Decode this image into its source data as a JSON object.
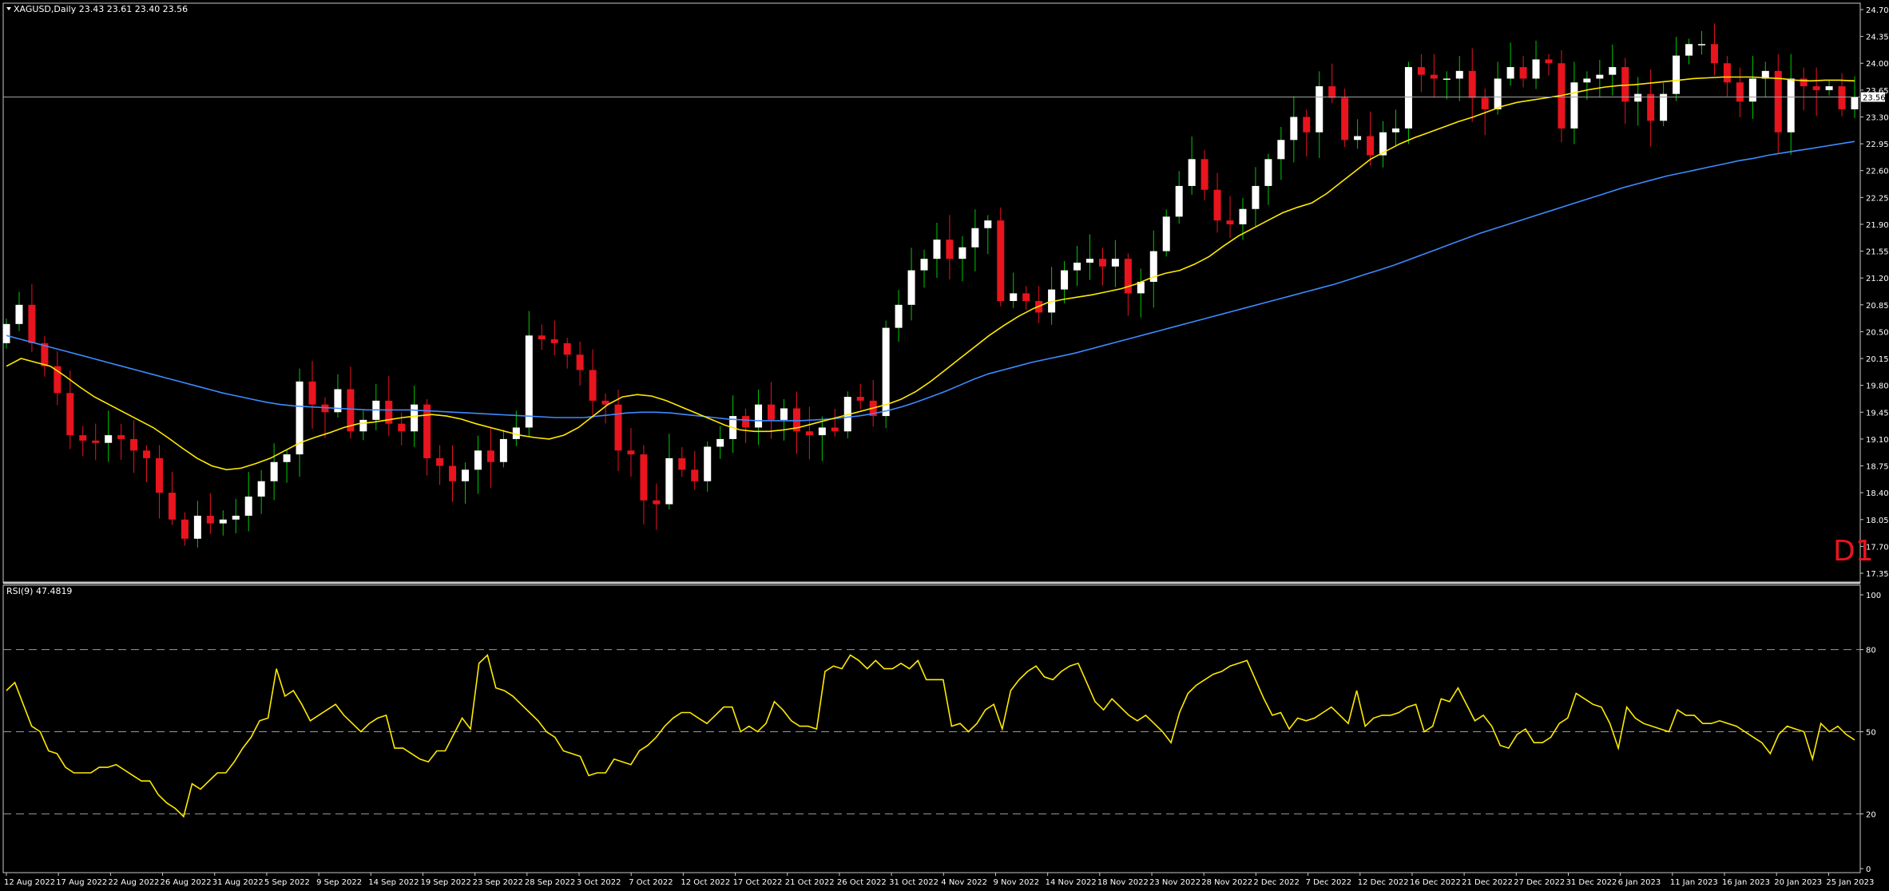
{
  "header": {
    "symbol_line": "XAGUSD,Daily  23.43 23.61 23.40 23.56",
    "rsi_label": "RSI(9) 47.4819",
    "timeframe": "D1",
    "current_price": "23.56"
  },
  "colors": {
    "background": "#000000",
    "bull_candle": "#ffffff",
    "bear_candle": "#e8141e",
    "bull_wick": "#00c800",
    "bear_wick": "#e8141e",
    "ma_fast": "#ffea00",
    "ma_slow": "#3d8bff",
    "rsi_line": "#ffea00"
  },
  "chart_data": [
    {
      "type": "candlestick",
      "price_ylim": [
        17.35,
        24.7
      ],
      "price_ticks": [
        "24.70",
        "24.35",
        "24.00",
        "23.65",
        "23.30",
        "22.95",
        "22.60",
        "22.25",
        "21.90",
        "21.55",
        "21.20",
        "20.85",
        "20.50",
        "20.15",
        "19.80",
        "19.45",
        "19.10",
        "18.75",
        "18.40",
        "18.05",
        "17.70",
        "17.35"
      ],
      "x_labels": [
        "12 Aug 2022",
        "17 Aug 2022",
        "22 Aug 2022",
        "26 Aug 2022",
        "31 Aug 2022",
        "5 Sep 2022",
        "9 Sep 2022",
        "14 Sep 2022",
        "19 Sep 2022",
        "23 Sep 2022",
        "28 Sep 2022",
        "3 Oct 2022",
        "7 Oct 2022",
        "12 Oct 2022",
        "17 Oct 2022",
        "21 Oct 2022",
        "26 Oct 2022",
        "31 Oct 2022",
        "4 Nov 2022",
        "9 Nov 2022",
        "14 Nov 2022",
        "18 Nov 2022",
        "23 Nov 2022",
        "28 Nov 2022",
        "2 Dec 2022",
        "7 Dec 2022",
        "12 Dec 2022",
        "16 Dec 2022",
        "21 Dec 2022",
        "27 Dec 2022",
        "31 Dec 2022",
        "6 Jan 2023",
        "11 Jan 2023",
        "16 Jan 2023",
        "20 Jan 2023",
        "25 Jan 2023"
      ],
      "close": [
        20.6,
        20.85,
        20.35,
        20.05,
        19.7,
        19.15,
        19.08,
        19.05,
        19.15,
        19.1,
        18.95,
        18.85,
        18.4,
        18.05,
        17.8,
        18.1,
        18.0,
        18.05,
        18.1,
        18.35,
        18.55,
        18.8,
        18.9,
        19.85,
        19.55,
        19.45,
        19.75,
        19.2,
        19.35,
        19.6,
        19.3,
        19.2,
        19.55,
        18.85,
        18.75,
        18.55,
        18.7,
        18.95,
        18.8,
        19.1,
        19.25,
        20.45,
        20.4,
        20.35,
        20.2,
        20.0,
        19.6,
        19.55,
        18.95,
        18.9,
        18.3,
        18.25,
        18.85,
        18.7,
        18.55,
        19.0,
        19.1,
        19.4,
        19.25,
        19.55,
        19.35,
        19.5,
        19.2,
        19.15,
        19.25,
        19.2,
        19.65,
        19.6,
        19.4,
        20.55,
        20.85,
        21.3,
        21.45,
        21.7,
        21.45,
        21.6,
        21.85,
        21.95,
        20.9,
        21.0,
        20.9,
        20.75,
        21.05,
        21.3,
        21.4,
        21.45,
        21.35,
        21.45,
        21.0,
        21.15,
        21.55,
        22.0,
        22.4,
        22.75,
        22.35,
        21.95,
        21.9,
        22.1,
        22.4,
        22.75,
        23.0,
        23.3,
        23.1,
        23.7,
        23.55,
        23.0,
        23.05,
        22.8,
        23.1,
        23.15,
        23.95,
        23.85,
        23.8,
        23.8,
        23.9,
        23.55,
        23.4,
        23.8,
        23.95,
        23.8,
        24.05,
        24.0,
        23.15,
        23.75,
        23.8,
        23.85,
        23.95,
        23.5,
        23.6,
        23.25,
        23.6,
        24.1,
        24.25,
        24.25,
        24.0,
        23.75,
        23.5,
        23.8,
        23.9,
        23.1,
        23.8,
        23.7,
        23.65,
        23.7,
        23.4,
        23.56
      ],
      "ma_fast": [
        20.05,
        20.15,
        20.1,
        20.05,
        19.92,
        19.78,
        19.65,
        19.55,
        19.45,
        19.35,
        19.25,
        19.12,
        18.98,
        18.85,
        18.75,
        18.7,
        18.72,
        18.78,
        18.85,
        18.95,
        19.05,
        19.12,
        19.18,
        19.25,
        19.3,
        19.32,
        19.35,
        19.38,
        19.4,
        19.42,
        19.4,
        19.36,
        19.3,
        19.25,
        19.2,
        19.15,
        19.12,
        19.1,
        19.15,
        19.25,
        19.4,
        19.55,
        19.65,
        19.68,
        19.66,
        19.6,
        19.52,
        19.44,
        19.36,
        19.28,
        19.22,
        19.2,
        19.2,
        19.22,
        19.25,
        19.3,
        19.35,
        19.4,
        19.45,
        19.5,
        19.55,
        19.62,
        19.72,
        19.85,
        20.0,
        20.15,
        20.3,
        20.45,
        20.58,
        20.7,
        20.8,
        20.88,
        20.92,
        20.95,
        20.98,
        21.02,
        21.06,
        21.12,
        21.2,
        21.26,
        21.3,
        21.38,
        21.48,
        21.62,
        21.75,
        21.85,
        21.95,
        22.05,
        22.12,
        22.18,
        22.3,
        22.45,
        22.6,
        22.75,
        22.85,
        22.95,
        23.03,
        23.1,
        23.17,
        23.24,
        23.3,
        23.37,
        23.44,
        23.49,
        23.52,
        23.55,
        23.58,
        23.62,
        23.66,
        23.69,
        23.71,
        23.72,
        23.74,
        23.76,
        23.78,
        23.8,
        23.81,
        23.82,
        23.82,
        23.82,
        23.81,
        23.8,
        23.78,
        23.77,
        23.78,
        23.78,
        23.77
      ],
      "ma_slow": [
        20.45,
        20.4,
        20.35,
        20.3,
        20.25,
        20.2,
        20.15,
        20.1,
        20.05,
        20.0,
        19.95,
        19.9,
        19.85,
        19.8,
        19.75,
        19.7,
        19.66,
        19.62,
        19.58,
        19.55,
        19.53,
        19.52,
        19.51,
        19.5,
        19.49,
        19.48,
        19.48,
        19.48,
        19.48,
        19.47,
        19.46,
        19.45,
        19.44,
        19.43,
        19.42,
        19.41,
        19.4,
        19.39,
        19.38,
        19.38,
        19.38,
        19.4,
        19.42,
        19.44,
        19.45,
        19.45,
        19.44,
        19.42,
        19.4,
        19.38,
        19.36,
        19.35,
        19.34,
        19.34,
        19.34,
        19.34,
        19.35,
        19.36,
        19.38,
        19.4,
        19.43,
        19.47,
        19.52,
        19.58,
        19.65,
        19.72,
        19.8,
        19.88,
        19.95,
        20.0,
        20.05,
        20.1,
        20.14,
        20.18,
        20.22,
        20.27,
        20.32,
        20.37,
        20.42,
        20.47,
        20.52,
        20.57,
        20.62,
        20.67,
        20.72,
        20.77,
        20.82,
        20.87,
        20.92,
        20.97,
        21.02,
        21.07,
        21.12,
        21.18,
        21.24,
        21.3,
        21.36,
        21.43,
        21.5,
        21.57,
        21.64,
        21.71,
        21.78,
        21.84,
        21.9,
        21.96,
        22.02,
        22.08,
        22.14,
        22.2,
        22.26,
        22.32,
        22.38,
        22.43,
        22.48,
        22.53,
        22.57,
        22.61,
        22.65,
        22.69,
        22.73,
        22.76,
        22.8,
        22.83,
        22.86,
        22.89,
        22.92,
        22.95,
        22.98
      ],
      "rsi_ylim": [
        0,
        100
      ],
      "rsi_ticks": [
        "100",
        "80",
        "50",
        "20",
        "0"
      ],
      "rsi_levels": [
        80,
        50,
        20
      ],
      "rsi": [
        65,
        68,
        60,
        52,
        50,
        43,
        42,
        37,
        35,
        35,
        35,
        37,
        37,
        38,
        36,
        34,
        32,
        32,
        27,
        24,
        22,
        19,
        31,
        29,
        32,
        35,
        35,
        39,
        44,
        48,
        54,
        55,
        73,
        63,
        65,
        60,
        54,
        56,
        58,
        60,
        56,
        53,
        50,
        53,
        55,
        56,
        44,
        44,
        42,
        40,
        39,
        43,
        43,
        49,
        55,
        51,
        75,
        78,
        66,
        65,
        63,
        60,
        57,
        54,
        50,
        48,
        43,
        42,
        41,
        34,
        35,
        35,
        40,
        39,
        38,
        43,
        45,
        48,
        52,
        55,
        57,
        57,
        55,
        53,
        56,
        59,
        59,
        50,
        52,
        50,
        53,
        61,
        58,
        54,
        52,
        52,
        51,
        72,
        74,
        73,
        78,
        76,
        73,
        76,
        73,
        73,
        75,
        73,
        76,
        69,
        69,
        69,
        52,
        53,
        50,
        53,
        58,
        60,
        51,
        65,
        69,
        72,
        74,
        70,
        69,
        72,
        74,
        75,
        68,
        61,
        58,
        62,
        59,
        56,
        54,
        56,
        53,
        50,
        46,
        57,
        64,
        67,
        69,
        71,
        72,
        74,
        75,
        76,
        69,
        62,
        56,
        57,
        51,
        55,
        54,
        55,
        57,
        59,
        56,
        53,
        65,
        52,
        55,
        56,
        56,
        57,
        59,
        60,
        50,
        52,
        62,
        61,
        66,
        60,
        54,
        56,
        52,
        45,
        44,
        49,
        51,
        46,
        46,
        48,
        53,
        55,
        64,
        62,
        60,
        59,
        53,
        44,
        59,
        55,
        53,
        52,
        51,
        50,
        58,
        56,
        56,
        53,
        53,
        54,
        53,
        52,
        50,
        48,
        46,
        42,
        49,
        52,
        51,
        50,
        40,
        53,
        50,
        52,
        49,
        47
      ]
    }
  ]
}
